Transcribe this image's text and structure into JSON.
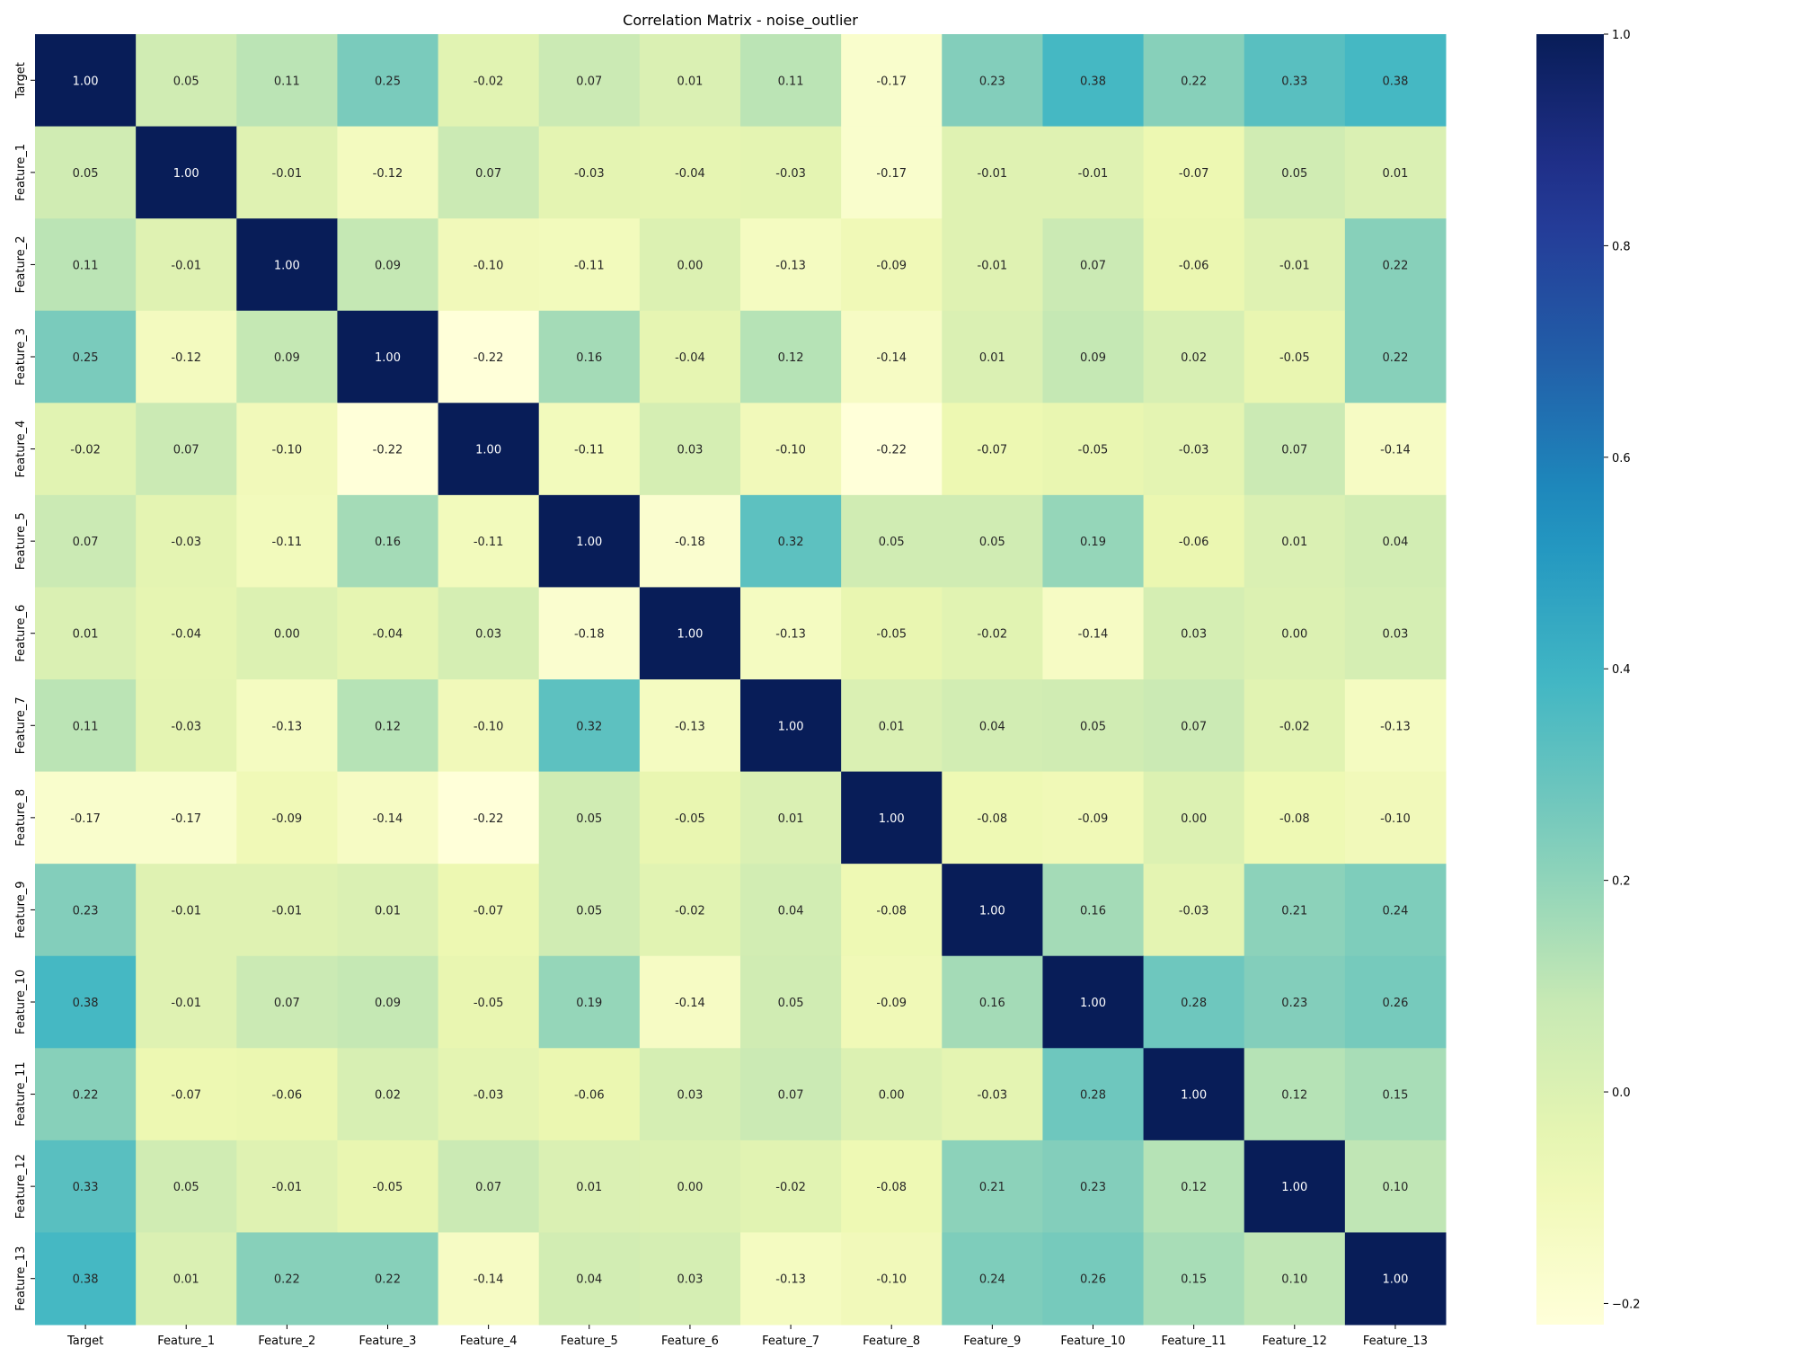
{
  "chart_data": {
    "type": "heatmap",
    "title": "Correlation Matrix - noise_outlier",
    "xlabel": "",
    "ylabel": "",
    "labels": [
      "Target",
      "Feature_1",
      "Feature_2",
      "Feature_3",
      "Feature_4",
      "Feature_5",
      "Feature_6",
      "Feature_7",
      "Feature_8",
      "Feature_9",
      "Feature_10",
      "Feature_11",
      "Feature_12",
      "Feature_13"
    ],
    "matrix": [
      [
        1.0,
        0.05,
        0.11,
        0.25,
        -0.02,
        0.07,
        0.01,
        0.11,
        -0.17,
        0.23,
        0.38,
        0.22,
        0.33,
        0.38
      ],
      [
        0.05,
        1.0,
        -0.01,
        -0.12,
        0.07,
        -0.03,
        -0.04,
        -0.03,
        -0.17,
        -0.01,
        -0.01,
        -0.07,
        0.05,
        0.01
      ],
      [
        0.11,
        -0.01,
        1.0,
        0.09,
        -0.1,
        -0.11,
        0.0,
        -0.13,
        -0.09,
        -0.01,
        0.07,
        -0.06,
        -0.01,
        0.22
      ],
      [
        0.25,
        -0.12,
        0.09,
        1.0,
        -0.22,
        0.16,
        -0.04,
        0.12,
        -0.14,
        0.01,
        0.09,
        0.02,
        -0.05,
        0.22
      ],
      [
        -0.02,
        0.07,
        -0.1,
        -0.22,
        1.0,
        -0.11,
        0.03,
        -0.1,
        -0.22,
        -0.07,
        -0.05,
        -0.03,
        0.07,
        -0.14
      ],
      [
        0.07,
        -0.03,
        -0.11,
        0.16,
        -0.11,
        1.0,
        -0.18,
        0.32,
        0.05,
        0.05,
        0.19,
        -0.06,
        0.01,
        0.04
      ],
      [
        0.01,
        -0.04,
        0.0,
        -0.04,
        0.03,
        -0.18,
        1.0,
        -0.13,
        -0.05,
        -0.02,
        -0.14,
        0.03,
        0.0,
        0.03
      ],
      [
        0.11,
        -0.03,
        -0.13,
        0.12,
        -0.1,
        0.32,
        -0.13,
        1.0,
        0.01,
        0.04,
        0.05,
        0.07,
        -0.02,
        -0.13
      ],
      [
        -0.17,
        -0.17,
        -0.09,
        -0.14,
        -0.22,
        0.05,
        -0.05,
        0.01,
        1.0,
        -0.08,
        -0.09,
        0.0,
        -0.08,
        -0.1
      ],
      [
        0.23,
        -0.01,
        -0.01,
        0.01,
        -0.07,
        0.05,
        -0.02,
        0.04,
        -0.08,
        1.0,
        0.16,
        -0.03,
        0.21,
        0.24
      ],
      [
        0.38,
        -0.01,
        0.07,
        0.09,
        -0.05,
        0.19,
        -0.14,
        0.05,
        -0.09,
        0.16,
        1.0,
        0.28,
        0.23,
        0.26
      ],
      [
        0.22,
        -0.07,
        -0.06,
        0.02,
        -0.03,
        -0.06,
        0.03,
        0.07,
        0.0,
        -0.03,
        0.28,
        1.0,
        0.12,
        0.15
      ],
      [
        0.33,
        0.05,
        -0.01,
        -0.05,
        0.07,
        0.01,
        0.0,
        -0.02,
        -0.08,
        0.21,
        0.23,
        0.12,
        1.0,
        0.1
      ],
      [
        0.38,
        0.01,
        0.22,
        0.22,
        -0.14,
        0.04,
        0.03,
        -0.13,
        -0.1,
        0.24,
        0.26,
        0.15,
        0.1,
        1.0
      ]
    ],
    "colorbar": {
      "colormap": "YlGnBu",
      "range": [
        -0.22,
        1.0
      ],
      "ticks": [
        -0.2,
        0.0,
        0.2,
        0.4,
        0.6,
        0.8,
        1.0
      ],
      "tick_labels": [
        "−0.2",
        "0.0",
        "0.2",
        "0.4",
        "0.6",
        "0.8",
        "1.0"
      ]
    },
    "annotations": "values shown in every cell, 2 decimals",
    "grid": false,
    "legend": "colorbar-right"
  }
}
